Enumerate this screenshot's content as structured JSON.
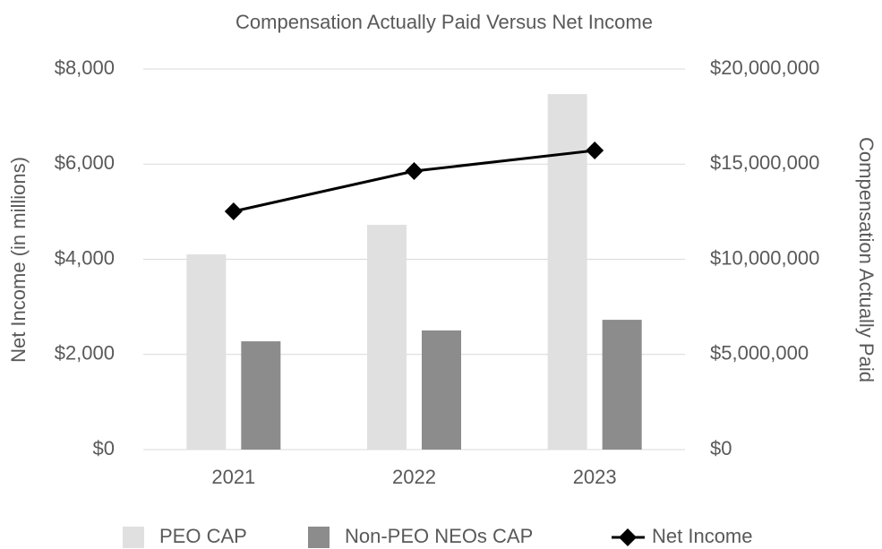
{
  "chart_data": {
    "type": "bar-line",
    "title": "Compensation Actually Paid Versus Net Income",
    "y_label": "Net Income (in millions)",
    "y2_label": "Compensation Actually Paid",
    "categories": [
      "2021",
      "2022",
      "2023"
    ],
    "series": [
      {
        "name": "PEO CAP",
        "type": "bar",
        "axis": "y2",
        "color": "#e0e0e0",
        "values": [
          10260000,
          11810000,
          18680000
        ]
      },
      {
        "name": "Non-PEO NEOs CAP",
        "type": "bar",
        "axis": "y2",
        "color": "#8c8c8c",
        "values": [
          5690000,
          6260000,
          6820000
        ]
      },
      {
        "name": "Net Income",
        "type": "line",
        "axis": "y",
        "color": "#000000",
        "values": [
          5007,
          5854,
          6287
        ]
      }
    ],
    "ylim": [
      0,
      8000
    ],
    "yticks": [
      {
        "value": 0,
        "label": "$0"
      },
      {
        "value": 2000,
        "label": "$2,000"
      },
      {
        "value": 4000,
        "label": "$4,000"
      },
      {
        "value": 6000,
        "label": "$6,000"
      },
      {
        "value": 8000,
        "label": "$8,000"
      }
    ],
    "y2lim": [
      0,
      20000000
    ],
    "y2ticks": [
      {
        "value": 0,
        "label": "$0"
      },
      {
        "value": 5000000,
        "label": "$5,000,000"
      },
      {
        "value": 10000000,
        "label": "$10,000,000"
      },
      {
        "value": 15000000,
        "label": "$15,000,000"
      },
      {
        "value": 20000000,
        "label": "$20,000,000"
      }
    ],
    "grid": true,
    "legend": "bottom"
  }
}
